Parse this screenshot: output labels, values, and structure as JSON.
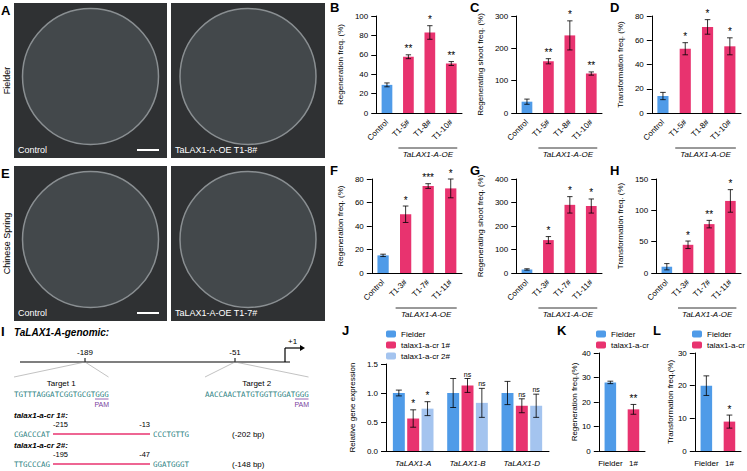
{
  "photos": [
    {
      "panel": "A",
      "row_label": "Fielder",
      "left": "Control",
      "right": "TaLAX1-A-OE T1-8#"
    },
    {
      "panel": "E",
      "row_label": "Chinese Spring",
      "left": "Control",
      "right": "TaLAX1-A-OE T1-7#"
    }
  ],
  "chart_data": [
    {
      "panel": "B",
      "type": "bar",
      "ylabel": "Regeneration freq. (%)",
      "categories": [
        "Control",
        "T1-5#",
        "T1-8#",
        "T1-10#"
      ],
      "group_label": {
        "label": "TaLAX1-A-OE",
        "categories": [
          "T1-5#",
          "T1-8#",
          "T1-10#"
        ]
      },
      "values": [
        29,
        58,
        83,
        51
      ],
      "errors": [
        2,
        2,
        7,
        2
      ],
      "significance": [
        null,
        "**",
        "*",
        "**"
      ],
      "colors": [
        "#4f9be8",
        "#e8336f",
        "#e8336f",
        "#e8336f"
      ],
      "ylim": [
        0,
        100
      ],
      "yticks": [
        0,
        20,
        40,
        60,
        80,
        100
      ],
      "grid": false
    },
    {
      "panel": "C",
      "type": "bar",
      "ylabel": "Regenerating shoot freq. (%)",
      "categories": [
        "Control",
        "T1-5#",
        "T1-8#",
        "T1-10#"
      ],
      "group_label": {
        "label": "TaLAX1-A-OE",
        "categories": [
          "T1-5#",
          "T1-8#",
          "T1-10#"
        ]
      },
      "values": [
        35,
        160,
        240,
        122
      ],
      "errors": [
        8,
        8,
        45,
        5
      ],
      "significance": [
        null,
        "**",
        "*",
        "**"
      ],
      "colors": [
        "#4f9be8",
        "#e8336f",
        "#e8336f",
        "#e8336f"
      ],
      "ylim": [
        0,
        300
      ],
      "yticks": [
        0,
        100,
        200,
        300
      ],
      "grid": false
    },
    {
      "panel": "D",
      "type": "bar",
      "ylabel": "Transformation freq. (%)",
      "categories": [
        "Control",
        "T1-5#",
        "T1-8#",
        "T1-10#"
      ],
      "group_label": {
        "label": "TaLAX1-A-OE",
        "categories": [
          "T1-5#",
          "T1-8#",
          "T1-10#"
        ]
      },
      "values": [
        14,
        53,
        71,
        55
      ],
      "errors": [
        3,
        5,
        6,
        7
      ],
      "significance": [
        null,
        "*",
        "*",
        "*"
      ],
      "colors": [
        "#4f9be8",
        "#e8336f",
        "#e8336f",
        "#e8336f"
      ],
      "ylim": [
        0,
        80
      ],
      "yticks": [
        0,
        20,
        40,
        60,
        80
      ],
      "grid": false
    },
    {
      "panel": "F",
      "type": "bar",
      "ylabel": "Regeneration freq. (%)",
      "categories": [
        "Control",
        "T1-3#",
        "T1-7#",
        "T1-11#"
      ],
      "group_label": {
        "label": "TaLAX1-A-OE",
        "categories": [
          "T1-3#",
          "T1-7#",
          "T1-11#"
        ]
      },
      "values": [
        15,
        50,
        74,
        72
      ],
      "errors": [
        1,
        7,
        2,
        8
      ],
      "significance": [
        null,
        "*",
        "***",
        "*"
      ],
      "colors": [
        "#4f9be8",
        "#e8336f",
        "#e8336f",
        "#e8336f"
      ],
      "ylim": [
        0,
        80
      ],
      "yticks": [
        0,
        20,
        40,
        60,
        80
      ],
      "grid": false
    },
    {
      "panel": "G",
      "type": "bar",
      "ylabel": "Regenerating shoot freq. (%)",
      "categories": [
        "Control",
        "T1-3#",
        "T1-7#",
        "T1-11#"
      ],
      "group_label": {
        "label": "TaLAX1-A-OE",
        "categories": [
          "T1-3#",
          "T1-7#",
          "T1-11#"
        ]
      },
      "values": [
        15,
        140,
        290,
        285
      ],
      "errors": [
        3,
        15,
        35,
        30
      ],
      "significance": [
        null,
        "*",
        "*",
        "*"
      ],
      "colors": [
        "#4f9be8",
        "#e8336f",
        "#e8336f",
        "#e8336f"
      ],
      "ylim": [
        0,
        400
      ],
      "yticks": [
        0,
        100,
        200,
        300,
        400
      ],
      "grid": false
    },
    {
      "panel": "H",
      "type": "bar",
      "ylabel": "Transformation freq. (%)",
      "categories": [
        "Control",
        "T1-3#",
        "T1-7#",
        "T1-11#"
      ],
      "group_label": {
        "label": "TaLAX1-A-OE",
        "categories": [
          "T1-3#",
          "T1-7#",
          "T1-11#"
        ]
      },
      "values": [
        10,
        45,
        78,
        115
      ],
      "errors": [
        5,
        6,
        6,
        18
      ],
      "significance": [
        null,
        "*",
        "**",
        "*"
      ],
      "colors": [
        "#4f9be8",
        "#e8336f",
        "#e8336f",
        "#e8336f"
      ],
      "ylim": [
        0,
        150
      ],
      "yticks": [
        0,
        50,
        100,
        150
      ],
      "grid": false
    },
    {
      "panel": "J",
      "type": "bar",
      "ylabel": "Relative gene expression",
      "categories": [
        "TaLAX1-A",
        "TaLAX1-B",
        "TaLAX1-D"
      ],
      "series": [
        {
          "name": "Fielder",
          "color": "#4f9be8",
          "values": [
            1.0,
            1.0,
            1.0
          ],
          "errors": [
            0.05,
            0.25,
            0.2
          ],
          "significance": [
            null,
            null,
            null
          ]
        },
        {
          "name": "talax1-a-cr 1#",
          "color": "#e8336f",
          "values": [
            0.56,
            1.13,
            0.78
          ],
          "errors": [
            0.15,
            0.12,
            0.12
          ],
          "significance": [
            "*",
            "ns",
            "ns"
          ]
        },
        {
          "name": "talax1-a-cr 2#",
          "color": "#a4c4ef",
          "values": [
            0.73,
            0.83,
            0.78
          ],
          "errors": [
            0.12,
            0.25,
            0.2
          ],
          "significance": [
            "*",
            "ns",
            "ns"
          ]
        }
      ],
      "ylim": [
        0,
        1.5
      ],
      "yticks": [
        {
          "value": 0,
          "label": "0.0"
        },
        0.5,
        {
          "value": 1,
          "label": "1.0"
        },
        1.5
      ],
      "legend": "top-left",
      "grid": false
    },
    {
      "panel": "K",
      "type": "bar",
      "ylabel": "Regeneration freq.(%)",
      "categories": [
        "Fielder",
        "1#"
      ],
      "series": [
        {
          "name": "Fielder",
          "color": "#4f9be8",
          "values": [
            28,
            null
          ],
          "errors": [
            0.5,
            null
          ],
          "significance": [
            null,
            null
          ]
        },
        {
          "name": "talax1-a-cr",
          "color": "#e8336f",
          "values": [
            null,
            17
          ],
          "errors": [
            null,
            2
          ],
          "significance": [
            null,
            "**"
          ]
        }
      ],
      "ylim": [
        0,
        40
      ],
      "yticks": [
        0,
        10,
        20,
        30,
        40
      ],
      "legend": "top-left",
      "grid": false
    },
    {
      "panel": "L",
      "type": "bar",
      "ylabel": "Transformation freq.(%)",
      "categories": [
        "Fielder",
        "1#"
      ],
      "series": [
        {
          "name": "Fielder",
          "color": "#4f9be8",
          "values": [
            20,
            null
          ],
          "errors": [
            3,
            null
          ],
          "significance": [
            null,
            null
          ]
        },
        {
          "name": "talax1-a-cr",
          "color": "#e8336f",
          "values": [
            null,
            9
          ],
          "errors": [
            null,
            2
          ],
          "significance": [
            null,
            "*"
          ]
        }
      ],
      "ylim": [
        0,
        30
      ],
      "yticks": [
        0,
        10,
        20,
        30
      ],
      "legend": "top-left",
      "grid": false
    }
  ],
  "diagram": {
    "panel": "I",
    "title": "TaLAX1-A-genomic:",
    "positions": [
      "-189",
      "-51",
      "+1"
    ],
    "targets": [
      {
        "label": "Target 1",
        "sequence": "TGTTTAGGATCGGTGCGTGGG",
        "pam": "PAM"
      },
      {
        "label": "Target 2",
        "sequence": "AACCAACTATGTGGTTGGATGGG",
        "pam": "PAM"
      }
    ],
    "alleles": [
      {
        "name": "talax1-a-cr 1#:",
        "left_seq": "CGACCCAT",
        "left_pos": "-215",
        "right_pos": "-13",
        "right_seq": "CCCTGTTG",
        "deletion": "(-202 bp)"
      },
      {
        "name": "talax1-a-cr 2#:",
        "left_seq": "TTGCCCAG",
        "left_pos": "-195",
        "right_pos": "-47",
        "right_seq": "GGATGGGT",
        "deletion": "(-148 bp)"
      }
    ]
  }
}
